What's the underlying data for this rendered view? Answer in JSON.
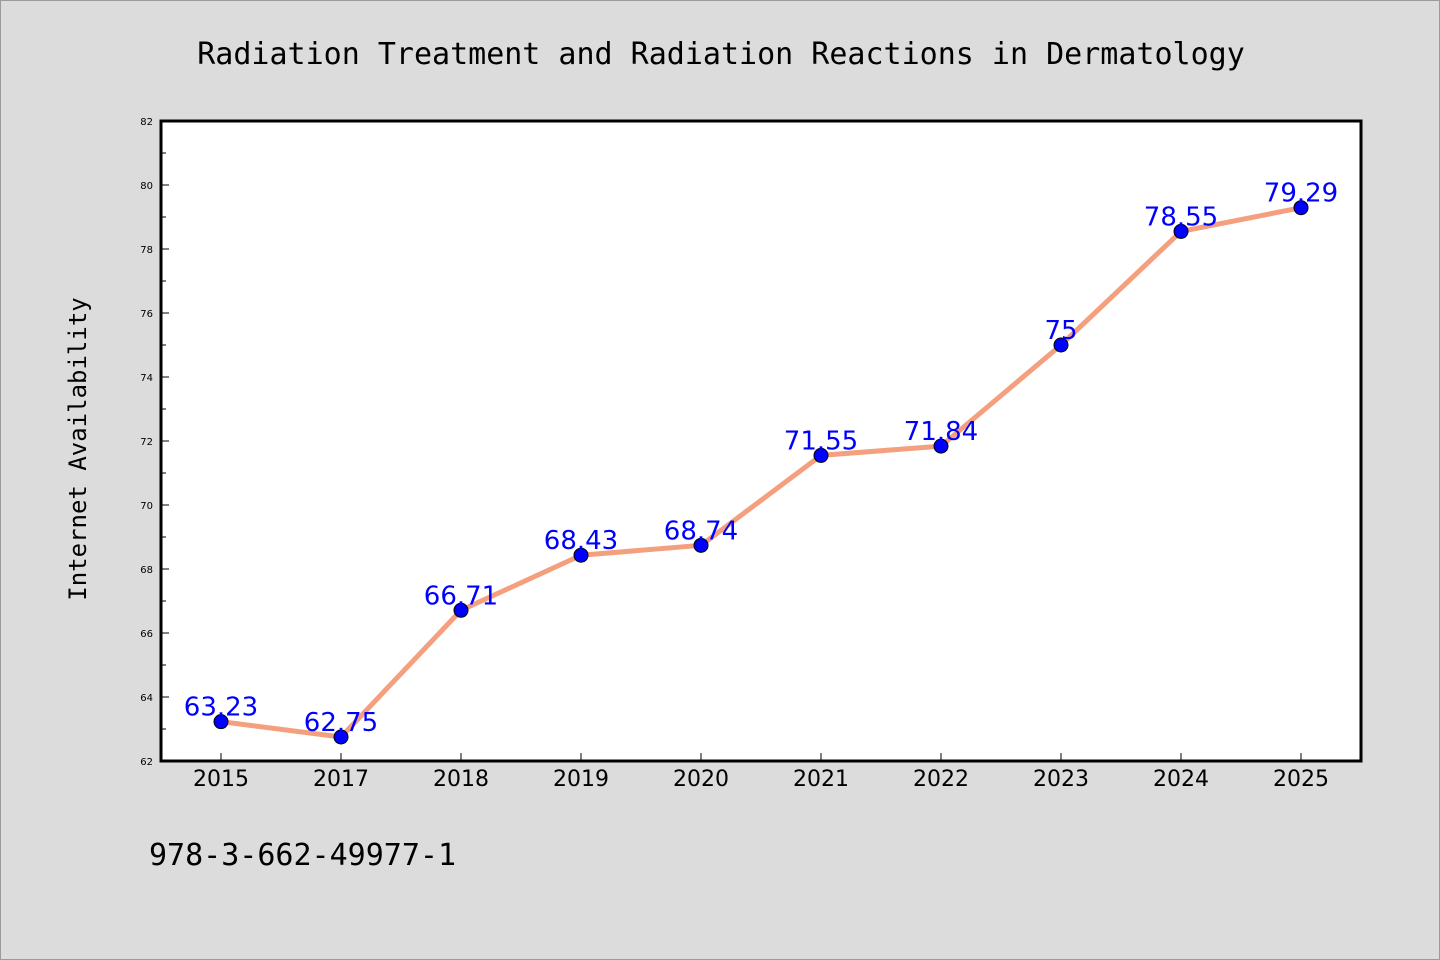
{
  "chart_data": {
    "type": "line",
    "title": "Radiation Treatment and Radiation Reactions in Dermatology",
    "xlabel": "",
    "ylabel": "Internet Availability",
    "categories": [
      "2015",
      "2017",
      "2018",
      "2019",
      "2020",
      "2021",
      "2022",
      "2023",
      "2024",
      "2025"
    ],
    "series": [
      {
        "values": [
          63.23,
          62.75,
          66.71,
          68.43,
          68.74,
          71.55,
          71.84,
          75,
          78.55,
          79.29
        ],
        "labels": [
          "63.23",
          "62.75",
          "66.71",
          "68.43",
          "68.74",
          "71.55",
          "71.84",
          "75",
          "78.55",
          "79.29"
        ]
      }
    ],
    "ylim": [
      62,
      82
    ],
    "yticks": [
      "62",
      "64",
      "66",
      "68",
      "70",
      "72",
      "74",
      "76",
      "78",
      "80",
      "82"
    ],
    "grid": false,
    "legend": "none",
    "colors": {
      "line": "#f4a07e",
      "marker": "#0000ff",
      "label": "#0000ff",
      "background": "#dcdcdc",
      "plot_area": "#ffffff"
    }
  },
  "footer": {
    "isbn": "978-3-662-49977-1"
  }
}
